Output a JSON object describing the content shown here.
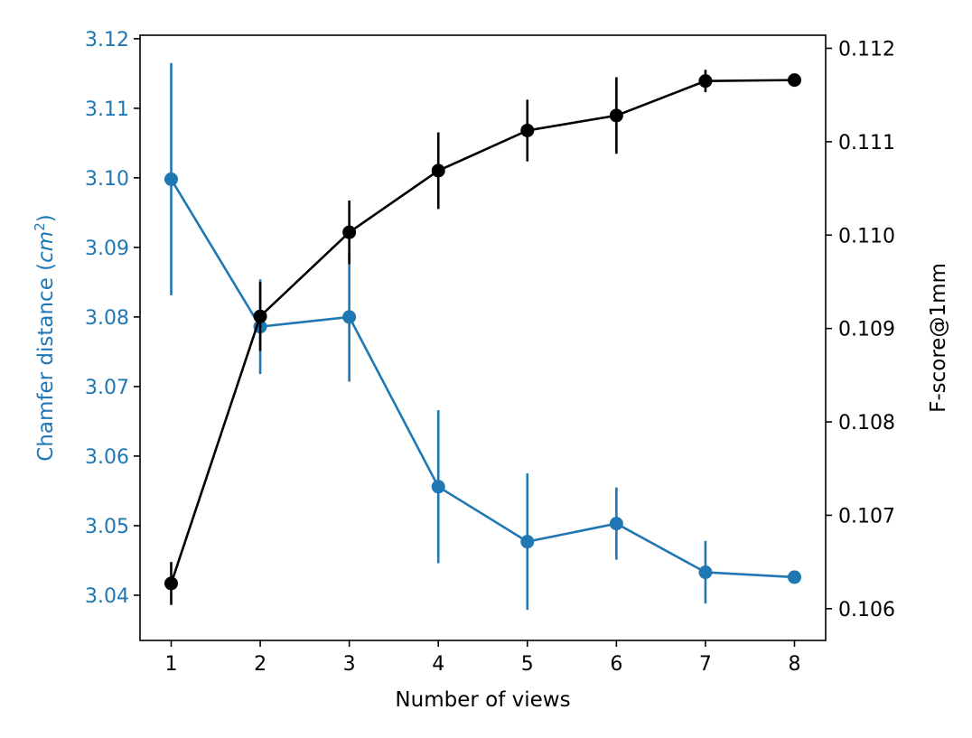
{
  "chart_data": {
    "type": "line",
    "title": "",
    "x": [
      1,
      2,
      3,
      4,
      5,
      6,
      7,
      8
    ],
    "xlabel": "Number of views",
    "xlim": [
      0.65,
      8.35
    ],
    "xticks": [
      1,
      2,
      3,
      4,
      5,
      6,
      7,
      8
    ],
    "grid": false,
    "left_axis": {
      "label_main": "Chamfer distance (",
      "label_unit": "cm",
      "label_exp": "2",
      "label_close": ")",
      "ylim": [
        3.0335,
        3.1205
      ],
      "ticks": [
        "3.04",
        "3.05",
        "3.06",
        "3.07",
        "3.08",
        "3.09",
        "3.10",
        "3.11",
        "3.12"
      ],
      "color": "#1f77b4"
    },
    "right_axis": {
      "label": "F-score@1mm",
      "ylim": [
        0.10566,
        0.11214
      ],
      "ticks": [
        "0.106",
        "0.107",
        "0.108",
        "0.109",
        "0.110",
        "0.111",
        "0.112"
      ],
      "color": "#000000"
    },
    "series": [
      {
        "name": "Chamfer distance",
        "axis": "left",
        "color": "#1f77b4",
        "values": [
          3.0998,
          3.0786,
          3.08,
          3.0556,
          3.0477,
          3.0503,
          3.0433,
          3.0426
        ],
        "errors": [
          0.0167,
          0.0068,
          0.0093,
          0.011,
          0.0098,
          0.0052,
          0.0045,
          0.0
        ]
      },
      {
        "name": "F-score@1mm",
        "axis": "right",
        "color": "#000000",
        "values": [
          0.10627,
          0.10913,
          0.11003,
          0.11069,
          0.11112,
          0.11128,
          0.11165,
          0.11166
        ],
        "errors": [
          0.00023,
          0.00037,
          0.00034,
          0.00041,
          0.00033,
          0.00041,
          0.00012,
          0.0
        ]
      }
    ]
  }
}
